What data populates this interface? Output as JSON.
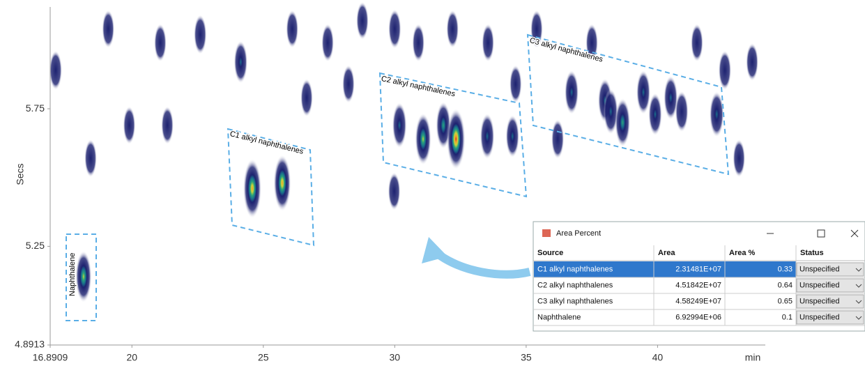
{
  "chart_data": {
    "type": "contour",
    "x_label": "min",
    "y_label": "Secs",
    "xlim": [
      16.8909,
      44.1
    ],
    "ylim": [
      4.8913,
      6.12
    ],
    "xticks": [
      16.8909,
      20,
      25,
      30,
      35,
      40
    ],
    "yticks": [
      4.8913,
      5.25,
      5.75
    ],
    "regions": [
      "Naphthalene",
      "C1 alkyl naphthalenes",
      "C2 alkyl naphthalenes",
      "C3 alkyl naphthalenes"
    ],
    "peaks": {
      "x": [
        18.16,
        24.58,
        25.72,
        30.18,
        31.08,
        31.85,
        32.33,
        33.52,
        34.48,
        36.73,
        38.0,
        38.22,
        38.67,
        39.46,
        39.91,
        40.5,
        40.92,
        42.25,
        17.1,
        19.1,
        21.08,
        22.6,
        24.14,
        26.1,
        27.45,
        28.77,
        30.0,
        30.9,
        32.2,
        33.55,
        35.4,
        37.5,
        41.5,
        42.56,
        43.6,
        36.2,
        43.1,
        29.98,
        21.35,
        18.43,
        19.9,
        26.65,
        28.24,
        34.6
      ],
      "y": [
        5.14,
        5.46,
        5.48,
        5.69,
        5.64,
        5.69,
        5.64,
        5.65,
        5.65,
        5.81,
        5.78,
        5.74,
        5.7,
        5.81,
        5.73,
        5.79,
        5.74,
        5.73,
        5.89,
        6.04,
        5.99,
        6.02,
        5.92,
        6.04,
        5.99,
        6.07,
        6.04,
        5.99,
        6.04,
        5.99,
        6.04,
        5.99,
        5.99,
        5.89,
        5.92,
        5.64,
        5.57,
        5.45,
        5.69,
        5.57,
        5.69,
        5.79,
        5.84,
        5.84
      ],
      "intensity": [
        0.6,
        0.85,
        0.75,
        0.4,
        0.6,
        0.45,
        0.9,
        0.4,
        0.3,
        0.35,
        0.35,
        0.4,
        0.5,
        0.35,
        0.3,
        0.35,
        0.25,
        0.4,
        0.2,
        0.15,
        0.15,
        0.2,
        0.3,
        0.15,
        0.15,
        0.15,
        0.2,
        0.15,
        0.15,
        0.15,
        0.15,
        0.15,
        0.15,
        0.2,
        0.15,
        0.2,
        0.15,
        0.15,
        0.15,
        0.15,
        0.15,
        0.15,
        0.15,
        0.15
      ]
    }
  },
  "window": {
    "title": "Area Percent",
    "columns": [
      "Source",
      "Area",
      "Area %",
      "Status"
    ],
    "rows": [
      [
        "C1 alkyl naphthalenes",
        "2.31481E+07",
        0.33,
        "Unspecified"
      ],
      [
        "C2 alkyl naphthalenes",
        "4.51842E+07",
        0.64,
        "Unspecified"
      ],
      [
        "C3 alkyl naphthalenes",
        "4.58249E+07",
        0.65,
        "Unspecified"
      ],
      [
        "Naphthalene",
        "6.92994E+06",
        0.1,
        "Unspecified"
      ]
    ]
  }
}
